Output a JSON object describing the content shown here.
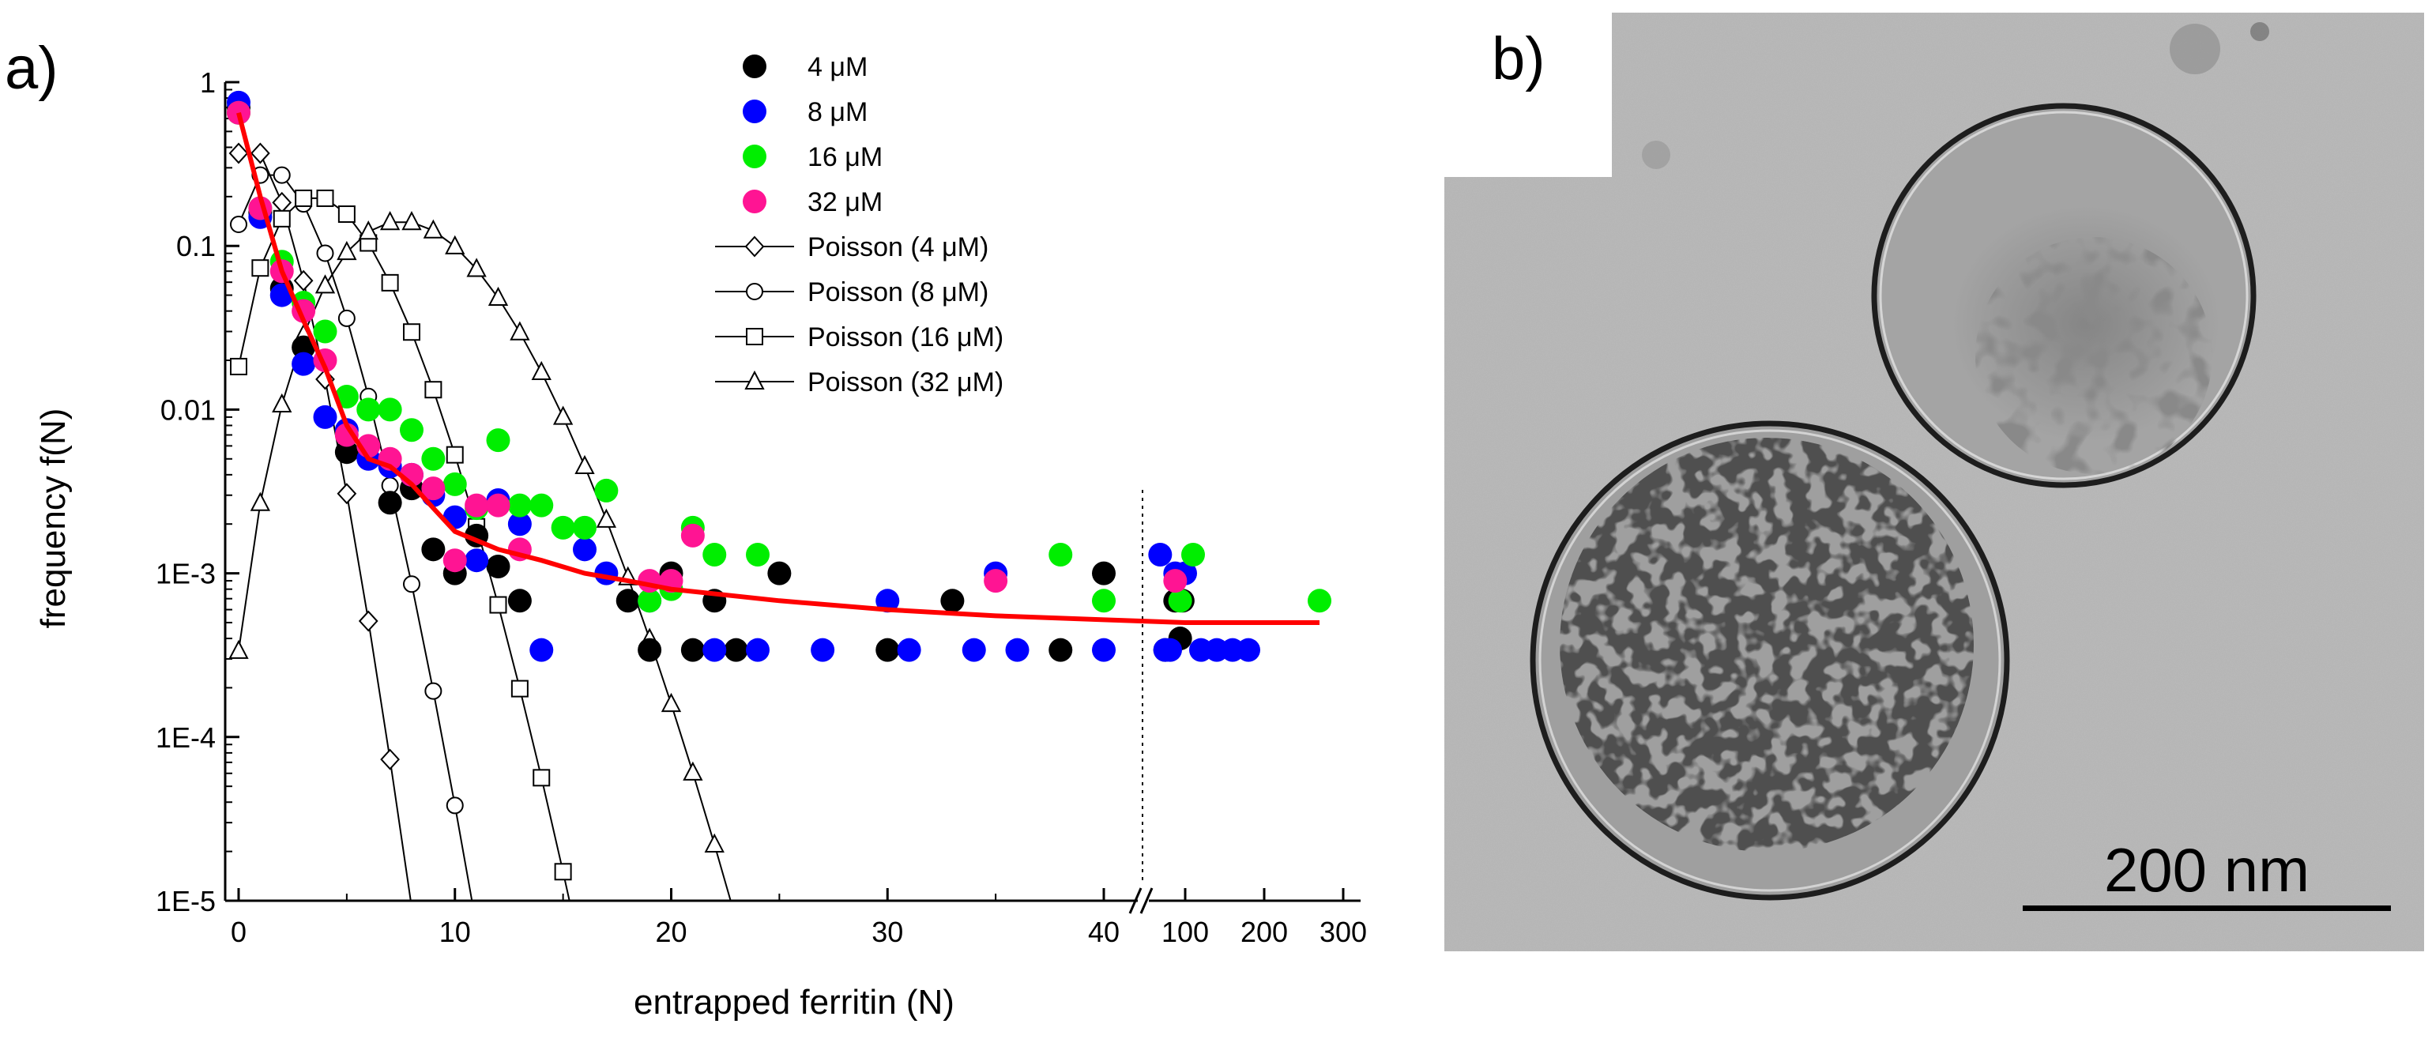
{
  "panels": {
    "a": "a)",
    "b": "b)"
  },
  "scale_bar_label": "200 nm",
  "chart_data": {
    "type": "scatter",
    "xlabel": "entrapped ferritin (N)",
    "ylabel": "frequency f(N)",
    "yscale": "log",
    "ylim": [
      1e-05,
      1
    ],
    "y_tick_labels": [
      "1",
      "0.1",
      "0.01",
      "1E-3",
      "1E-4",
      "1E-5"
    ],
    "x_axis_break": "//",
    "x_tick_labels": [
      "0",
      "10",
      "20",
      "30",
      "40",
      "100",
      "200",
      "300"
    ],
    "x_segments": [
      {
        "scale": "linear",
        "range": [
          0,
          40
        ]
      },
      {
        "scale": "linear",
        "range": [
          40,
          300
        ],
        "after_break": true
      }
    ],
    "colors": {
      "4uM": "#000000",
      "8uM": "#0000ff",
      "16uM": "#00ee00",
      "32uM": "#ff1493",
      "fit": "#ff0000"
    },
    "series": [
      {
        "name": "4 μM",
        "kind": "points",
        "color": "#000000",
        "points": [
          [
            0,
            0.7
          ],
          [
            1,
            0.16
          ],
          [
            2,
            0.055
          ],
          [
            3,
            0.024
          ],
          [
            5,
            0.0055
          ],
          [
            7,
            0.0027
          ],
          [
            8,
            0.0033
          ],
          [
            9,
            0.0014
          ],
          [
            10,
            0.001
          ],
          [
            11,
            0.0017
          ],
          [
            12,
            0.0011
          ],
          [
            13,
            0.00068
          ],
          [
            18,
            0.00068
          ],
          [
            19,
            0.00034
          ],
          [
            20,
            0.001
          ],
          [
            21,
            0.00034
          ],
          [
            22,
            0.00068
          ],
          [
            23,
            0.00034
          ],
          [
            25,
            0.001
          ],
          [
            30,
            0.00034
          ],
          [
            33,
            0.00068
          ],
          [
            38,
            0.00034
          ],
          [
            40,
            0.001
          ],
          [
            60,
            0.00034
          ],
          [
            80,
            0.00068
          ],
          [
            90,
            0.0004
          ],
          [
            95,
            0.00068
          ]
        ]
      },
      {
        "name": "8 μM",
        "kind": "points",
        "color": "#0000ff",
        "points": [
          [
            0,
            0.75
          ],
          [
            1,
            0.15
          ],
          [
            2,
            0.05
          ],
          [
            3,
            0.019
          ],
          [
            4,
            0.009
          ],
          [
            5,
            0.0075
          ],
          [
            6,
            0.005
          ],
          [
            7,
            0.0045
          ],
          [
            8,
            0.004
          ],
          [
            9,
            0.003
          ],
          [
            10,
            0.0022
          ],
          [
            11,
            0.0012
          ],
          [
            12,
            0.0028
          ],
          [
            13,
            0.002
          ],
          [
            14,
            0.00034
          ],
          [
            16,
            0.0014
          ],
          [
            17,
            0.001
          ],
          [
            19,
            0.00068
          ],
          [
            22,
            0.00034
          ],
          [
            24,
            0.00034
          ],
          [
            27,
            0.00034
          ],
          [
            30,
            0.00068
          ],
          [
            31,
            0.00034
          ],
          [
            34,
            0.00034
          ],
          [
            35,
            0.001
          ],
          [
            36,
            0.00034
          ],
          [
            40,
            0.00034
          ],
          [
            50,
            0.0013
          ],
          [
            60,
            0.00034
          ],
          [
            70,
            0.00034
          ],
          [
            80,
            0.001
          ],
          [
            100,
            0.001
          ],
          [
            120,
            0.00034
          ],
          [
            140,
            0.00034
          ],
          [
            160,
            0.00034
          ],
          [
            180,
            0.00034
          ]
        ]
      },
      {
        "name": "16 μM",
        "kind": "points",
        "color": "#00ee00",
        "points": [
          [
            0,
            0.65
          ],
          [
            1,
            0.17
          ],
          [
            2,
            0.08
          ],
          [
            3,
            0.045
          ],
          [
            4,
            0.03
          ],
          [
            5,
            0.012
          ],
          [
            6,
            0.01
          ],
          [
            7,
            0.01
          ],
          [
            8,
            0.0075
          ],
          [
            9,
            0.005
          ],
          [
            10,
            0.0035
          ],
          [
            11,
            0.0025
          ],
          [
            12,
            0.0065
          ],
          [
            13,
            0.0026
          ],
          [
            14,
            0.0026
          ],
          [
            15,
            0.0019
          ],
          [
            16,
            0.0019
          ],
          [
            17,
            0.0032
          ],
          [
            19,
            0.00068
          ],
          [
            20,
            0.0008
          ],
          [
            21,
            0.0019
          ],
          [
            22,
            0.0013
          ],
          [
            24,
            0.0013
          ],
          [
            38,
            0.0013
          ],
          [
            40,
            0.00068
          ],
          [
            90,
            0.00068
          ],
          [
            110,
            0.0013
          ],
          [
            270,
            0.00068
          ]
        ]
      },
      {
        "name": "32 μM",
        "kind": "points",
        "color": "#ff1493",
        "points": [
          [
            0,
            0.65
          ],
          [
            1,
            0.17
          ],
          [
            2,
            0.07
          ],
          [
            3,
            0.04
          ],
          [
            4,
            0.02
          ],
          [
            5,
            0.007
          ],
          [
            6,
            0.006
          ],
          [
            7,
            0.005
          ],
          [
            8,
            0.004
          ],
          [
            9,
            0.0033
          ],
          [
            10,
            0.0012
          ],
          [
            11,
            0.0026
          ],
          [
            12,
            0.0026
          ],
          [
            13,
            0.0014
          ],
          [
            19,
            0.0009
          ],
          [
            20,
            0.0009
          ],
          [
            21,
            0.0017
          ],
          [
            35,
            0.0009
          ],
          [
            80,
            0.0009
          ]
        ]
      },
      {
        "name": "Poisson (4 μM)",
        "kind": "poisson",
        "marker": "diamond",
        "mean": 1.0,
        "n_max": 7
      },
      {
        "name": "Poisson (8 μM)",
        "kind": "poisson",
        "marker": "circle",
        "mean": 2.0,
        "n_max": 11
      },
      {
        "name": "Poisson (16 μM)",
        "kind": "poisson",
        "marker": "square",
        "mean": 4.0,
        "n_max": 15
      },
      {
        "name": "Poisson (32 μM)",
        "kind": "poisson",
        "marker": "triangle",
        "mean": 8.0,
        "n_max": 23
      },
      {
        "name": "fit",
        "kind": "line",
        "color": "#ff0000",
        "points": [
          [
            0,
            0.65
          ],
          [
            1,
            0.2
          ],
          [
            2,
            0.07
          ],
          [
            3,
            0.035
          ],
          [
            4,
            0.018
          ],
          [
            5,
            0.008
          ],
          [
            6,
            0.005
          ],
          [
            7,
            0.0045
          ],
          [
            8,
            0.0035
          ],
          [
            9,
            0.0025
          ],
          [
            10,
            0.0018
          ],
          [
            12,
            0.0014
          ],
          [
            14,
            0.0012
          ],
          [
            16,
            0.001
          ],
          [
            18,
            0.0009
          ],
          [
            20,
            0.0008
          ],
          [
            25,
            0.00068
          ],
          [
            30,
            0.0006
          ],
          [
            35,
            0.00055
          ],
          [
            40,
            0.00052
          ],
          [
            100,
            0.0005
          ],
          [
            200,
            0.0005
          ],
          [
            270,
            0.0005
          ]
        ]
      }
    ],
    "legend": [
      {
        "label": "4 μM",
        "color": "#000000",
        "marker": "dot"
      },
      {
        "label": "8 μM",
        "color": "#0000ff",
        "marker": "dot"
      },
      {
        "label": "16 μM",
        "color": "#00ee00",
        "marker": "dot"
      },
      {
        "label": "32 μM",
        "color": "#ff1493",
        "marker": "dot"
      },
      {
        "label": "Poisson (4 μM)",
        "color": "#000000",
        "marker": "diamond"
      },
      {
        "label": "Poisson (8 μM)",
        "color": "#000000",
        "marker": "circle"
      },
      {
        "label": "Poisson (16 μM)",
        "color": "#000000",
        "marker": "square"
      },
      {
        "label": "Poisson (32 μM)",
        "color": "#000000",
        "marker": "triangle"
      }
    ]
  }
}
